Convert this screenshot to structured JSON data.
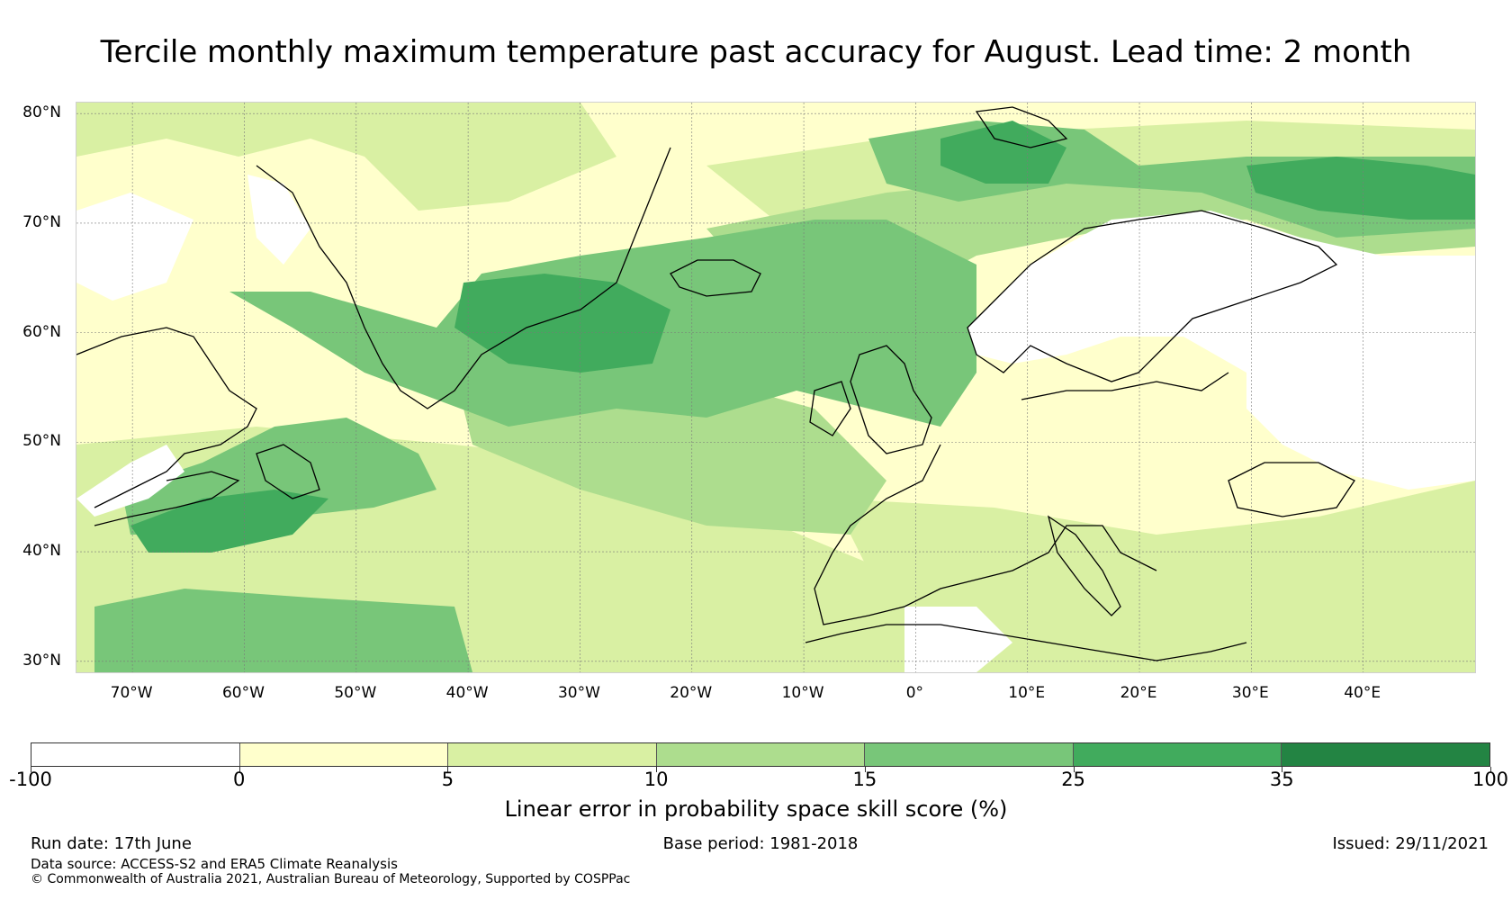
{
  "title": "Tercile monthly maximum temperature past accuracy for August. Lead time: 2 month",
  "map": {
    "lat_ticks": [
      {
        "value": 80,
        "label": "80°N"
      },
      {
        "value": 70,
        "label": "70°N"
      },
      {
        "value": 60,
        "label": "60°N"
      },
      {
        "value": 50,
        "label": "50°N"
      },
      {
        "value": 40,
        "label": "40°N"
      },
      {
        "value": 30,
        "label": "30°N"
      }
    ],
    "lon_ticks": [
      {
        "value": -70,
        "label": "70°W"
      },
      {
        "value": -60,
        "label": "60°W"
      },
      {
        "value": -50,
        "label": "50°W"
      },
      {
        "value": -40,
        "label": "40°W"
      },
      {
        "value": -30,
        "label": "30°W"
      },
      {
        "value": -20,
        "label": "20°W"
      },
      {
        "value": -10,
        "label": "10°W"
      },
      {
        "value": 0,
        "label": "0°"
      },
      {
        "value": 10,
        "label": "10°E"
      },
      {
        "value": 20,
        "label": "20°E"
      },
      {
        "value": 30,
        "label": "30°E"
      },
      {
        "value": 40,
        "label": "40°E"
      }
    ],
    "lon_range": [
      -75,
      50
    ],
    "lat_range": [
      29,
      81
    ],
    "grid": true
  },
  "colorbar": {
    "label": "Linear error in probability space skill score (%)",
    "bounds": [
      "-100",
      "0",
      "5",
      "10",
      "15",
      "25",
      "35",
      "100"
    ],
    "colors": [
      "#ffffff",
      "#ffffcc",
      "#d9f0a3",
      "#addd8e",
      "#78c679",
      "#41ab5d",
      "#238443"
    ]
  },
  "footer": {
    "run_date": "Run date: 17th June",
    "base_period": "Base period: 1981-2018",
    "issued": "Issued: 29/11/2021",
    "data_source": "Data source: ACCESS-S2 and ERA5 Climate Reanalysis",
    "copyright": "© Commonwealth of Australia 2021, Australian Bureau of Meteorology, Supported by COSPPac"
  }
}
